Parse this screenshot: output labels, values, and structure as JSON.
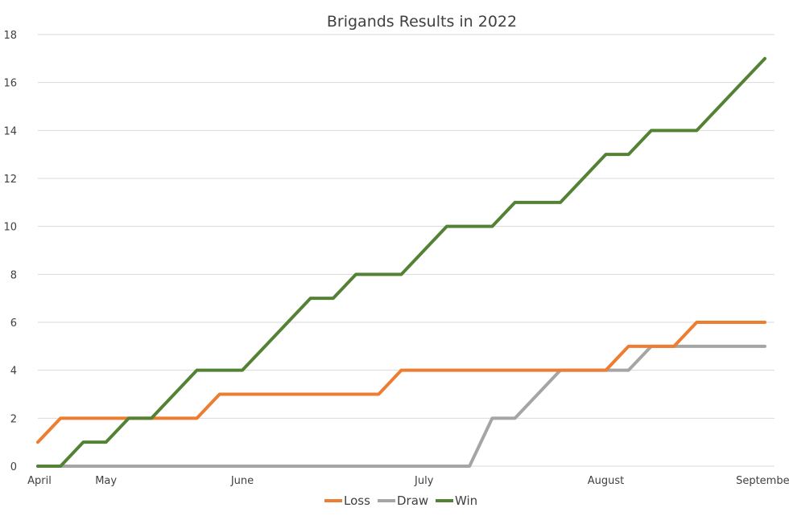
{
  "chart_data": {
    "type": "line",
    "title": "Brigands Results in 2022",
    "xlabel": "",
    "ylabel": "",
    "ylim": [
      0,
      18
    ],
    "y_ticks": [
      0,
      2,
      4,
      6,
      8,
      10,
      12,
      14,
      16,
      18
    ],
    "x_tick_labels": [
      "April",
      "May",
      "June",
      "July",
      "August",
      "September"
    ],
    "x_tick_positions": [
      0,
      3,
      9,
      17,
      25,
      32
    ],
    "x": [
      0,
      1,
      2,
      3,
      4,
      5,
      6,
      7,
      8,
      9,
      10,
      11,
      12,
      13,
      14,
      15,
      16,
      17,
      18,
      19,
      20,
      21,
      22,
      23,
      24,
      25,
      26,
      27,
      28,
      29,
      30,
      31,
      32
    ],
    "grid": true,
    "legend_placement": "bottom",
    "colors": {
      "Loss": "#ED7D31",
      "Draw": "#A5A5A5",
      "Win": "#548235",
      "grid": "#D9D9D9",
      "text": "#404040"
    },
    "series": [
      {
        "name": "Loss",
        "values": [
          1,
          2,
          2,
          2,
          2,
          2,
          2,
          2,
          3,
          3,
          3,
          3,
          3,
          3,
          3,
          3,
          4,
          4,
          4,
          4,
          4,
          4,
          4,
          4,
          4,
          4,
          5,
          5,
          5,
          6,
          6,
          6,
          6
        ]
      },
      {
        "name": "Draw",
        "values": [
          0,
          0,
          0,
          0,
          0,
          0,
          0,
          0,
          0,
          0,
          0,
          0,
          0,
          0,
          0,
          0,
          0,
          0,
          0,
          0,
          2,
          2,
          3,
          4,
          4,
          4,
          4,
          5,
          5,
          5,
          5,
          5,
          5
        ]
      },
      {
        "name": "Win",
        "values": [
          0,
          0,
          1,
          1,
          2,
          2,
          3,
          4,
          4,
          4,
          5,
          6,
          7,
          7,
          8,
          8,
          8,
          9,
          10,
          10,
          10,
          11,
          11,
          11,
          12,
          13,
          13,
          14,
          14,
          14,
          15,
          16,
          17
        ]
      }
    ]
  }
}
